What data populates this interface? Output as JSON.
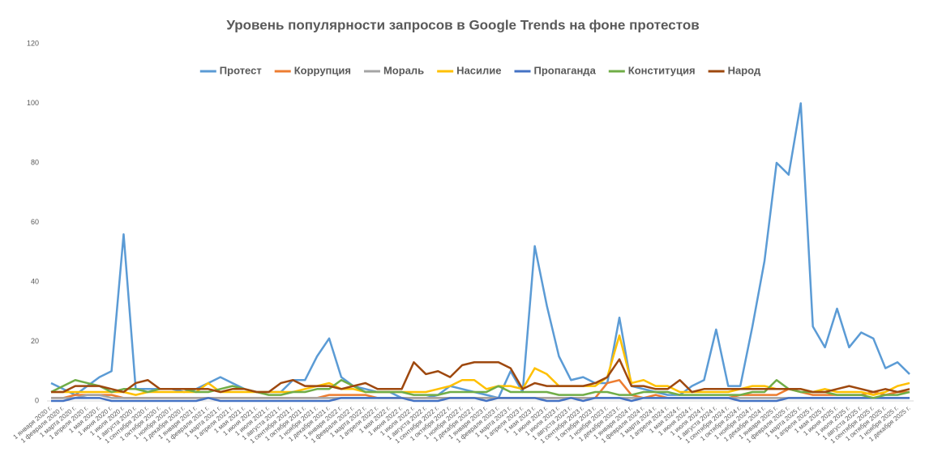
{
  "chart_data": {
    "type": "line",
    "title": "Уровень популярности запросов в Google Trends на фоне протестов",
    "categories": [
      "1 января 2020 г.",
      "1 февраля 2020 г.",
      "1 марта 2020 г.",
      "1 апреля 2020 г.",
      "1 мая 2020 г.",
      "1 июня 2020 г.",
      "1 июля 2020 г.",
      "1 августа 2020 г.",
      "1 сентября 2020 г.",
      "1 октября 2020 г.",
      "1 ноября 2020 г.",
      "1 декабря 2020 г.",
      "1 января 2021 г.",
      "1 февраля 2021 г.",
      "1 марта 2021 г.",
      "1 апреля 2021 г.",
      "1 мая 2021 г.",
      "1 июня 2021 г.",
      "1 июля 2021 г.",
      "1 августа 2021 г.",
      "1 сентября 2021 г.",
      "1 октября 2021 г.",
      "1 ноября 2021 г.",
      "1 декабря 2021 г.",
      "1 января 2022 г.",
      "1 февраля 2022 г.",
      "1 марта 2022 г.",
      "1 апреля 2022 г.",
      "1 мая 2022 г.",
      "1 июня 2022 г.",
      "1 июля 2022 г.",
      "1 августа 2022 г.",
      "1 сентября 2022 г.",
      "1 октября 2022 г.",
      "1 ноября 2022 г.",
      "1 декабря 2022 г.",
      "1 января 2023 г.",
      "1 февраля 2023 г.",
      "1 марта 2023 г.",
      "1 апреля 2023 г.",
      "1 мая 2023 г.",
      "1 июня 2023 г.",
      "1 июля 2023 г.",
      "1 августа 2023 г.",
      "1 сентября 2023 г.",
      "1 октября 2023 г.",
      "1 ноября 2023 г.",
      "1 декабря 2023 г.",
      "1 января 2024 г.",
      "1 февраля 2024 г.",
      "1 марта 2024 г.",
      "1 апреля 2024 г.",
      "1 мая 2024 г.",
      "1 июня 2024 г.",
      "1 июля 2024 г.",
      "1 августа 2024 г.",
      "1 сентября 2024 г.",
      "1 октября 2024 г.",
      "1 ноября 2024 г.",
      "1 декабря 2024 г.",
      "1 января 2025 г.",
      "1 февраля 2025 г.",
      "1 марта 2025 г.",
      "1 апреля 2025 г.",
      "1 мая 2025 г.",
      "1 июня 2025 г.",
      "1 июля 2025 г.",
      "1 августа 2025 г.",
      "1 сентября 2025 г.",
      "1 октября 2025 г.",
      "1 ноября 2025 г.",
      "1 декабря 2025 г."
    ],
    "series": [
      {
        "name": "Протест",
        "color": "#5b9bd5",
        "values": [
          6,
          4,
          2,
          5,
          8,
          10,
          56,
          4,
          4,
          4,
          4,
          3,
          4,
          6,
          8,
          6,
          4,
          3,
          3,
          3,
          7,
          7,
          15,
          21,
          8,
          5,
          4,
          3,
          3,
          1,
          1,
          1,
          2,
          5,
          4,
          3,
          2,
          1,
          10,
          3,
          52,
          32,
          15,
          7,
          8,
          6,
          6,
          28,
          5,
          4,
          3,
          2,
          2,
          5,
          7,
          24,
          5,
          5,
          25,
          47,
          80,
          76,
          100,
          25,
          18,
          31,
          18,
          23,
          21,
          11,
          13,
          9
        ]
      },
      {
        "name": "Коррупция",
        "color": "#ed7d31",
        "values": [
          1,
          1,
          2,
          2,
          2,
          2,
          1,
          1,
          1,
          1,
          1,
          1,
          1,
          1,
          1,
          1,
          1,
          1,
          1,
          1,
          1,
          1,
          1,
          2,
          2,
          2,
          2,
          1,
          1,
          1,
          1,
          1,
          1,
          1,
          1,
          1,
          1,
          1,
          1,
          1,
          1,
          1,
          1,
          1,
          1,
          1,
          6,
          7,
          2,
          1,
          2,
          1,
          1,
          1,
          1,
          1,
          1,
          2,
          2,
          2,
          2,
          4,
          3,
          2,
          2,
          2,
          2,
          2,
          3,
          2,
          3,
          3
        ]
      },
      {
        "name": "Мораль",
        "color": "#a5a5a5",
        "values": [
          1,
          1,
          1,
          2,
          2,
          1,
          1,
          1,
          1,
          1,
          1,
          1,
          1,
          1,
          1,
          1,
          1,
          1,
          1,
          1,
          1,
          1,
          1,
          1,
          1,
          1,
          1,
          1,
          1,
          1,
          1,
          1,
          1,
          1,
          1,
          1,
          1,
          1,
          1,
          1,
          1,
          1,
          1,
          1,
          1,
          1,
          1,
          1,
          1,
          1,
          1,
          1,
          1,
          1,
          1,
          1,
          1,
          1,
          1,
          1,
          1,
          1,
          1,
          1,
          1,
          1,
          1,
          1,
          1,
          1,
          1,
          1
        ]
      },
      {
        "name": "Насилие",
        "color": "#ffc000",
        "values": [
          3,
          3,
          3,
          3,
          3,
          3,
          3,
          2,
          3,
          3,
          3,
          3,
          3,
          6,
          3,
          3,
          3,
          3,
          3,
          3,
          3,
          4,
          5,
          6,
          4,
          4,
          3,
          3,
          3,
          3,
          3,
          3,
          4,
          5,
          7,
          7,
          4,
          5,
          5,
          4,
          11,
          9,
          5,
          5,
          5,
          5,
          8,
          22,
          6,
          7,
          5,
          5,
          3,
          3,
          3,
          3,
          3,
          4,
          5,
          5,
          4,
          4,
          4,
          3,
          4,
          3,
          3,
          3,
          2,
          3,
          5,
          6
        ]
      },
      {
        "name": "Пропаганда",
        "color": "#4472c4",
        "values": [
          0,
          0,
          1,
          1,
          1,
          0,
          0,
          0,
          0,
          0,
          0,
          0,
          0,
          1,
          0,
          0,
          0,
          0,
          0,
          0,
          0,
          0,
          0,
          0,
          1,
          1,
          1,
          1,
          1,
          1,
          0,
          0,
          0,
          1,
          1,
          1,
          0,
          1,
          1,
          1,
          1,
          0,
          0,
          1,
          0,
          1,
          1,
          1,
          0,
          1,
          1,
          1,
          1,
          1,
          1,
          1,
          1,
          0,
          0,
          0,
          0,
          1,
          1,
          1,
          1,
          1,
          1,
          1,
          1,
          1,
          1,
          1
        ]
      },
      {
        "name": "Конституция",
        "color": "#70ad47",
        "values": [
          3,
          5,
          7,
          6,
          5,
          3,
          4,
          4,
          3,
          4,
          4,
          4,
          3,
          3,
          4,
          5,
          4,
          3,
          2,
          2,
          3,
          3,
          4,
          4,
          7,
          5,
          3,
          3,
          3,
          3,
          2,
          2,
          2,
          3,
          3,
          3,
          3,
          5,
          3,
          3,
          3,
          3,
          2,
          2,
          2,
          3,
          3,
          2,
          2,
          3,
          3,
          3,
          2,
          2,
          2,
          2,
          2,
          2,
          3,
          3,
          7,
          4,
          3,
          3,
          3,
          2,
          2,
          2,
          1,
          2,
          2,
          3
        ]
      },
      {
        "name": "Народ",
        "color": "#9e480e",
        "values": [
          3,
          3,
          5,
          5,
          5,
          4,
          3,
          6,
          7,
          4,
          4,
          4,
          4,
          4,
          3,
          4,
          4,
          3,
          3,
          6,
          7,
          5,
          5,
          5,
          4,
          5,
          6,
          4,
          4,
          4,
          13,
          9,
          10,
          8,
          12,
          13,
          13,
          13,
          11,
          4,
          6,
          5,
          5,
          5,
          5,
          6,
          8,
          14,
          5,
          5,
          4,
          4,
          7,
          3,
          4,
          4,
          4,
          4,
          4,
          4,
          4,
          4,
          4,
          3,
          3,
          4,
          5,
          4,
          3,
          4,
          3,
          4
        ]
      }
    ],
    "ylim": [
      0,
      120
    ],
    "yticks": [
      0,
      20,
      40,
      60,
      80,
      100,
      120
    ],
    "grid": false,
    "legend": "top"
  }
}
